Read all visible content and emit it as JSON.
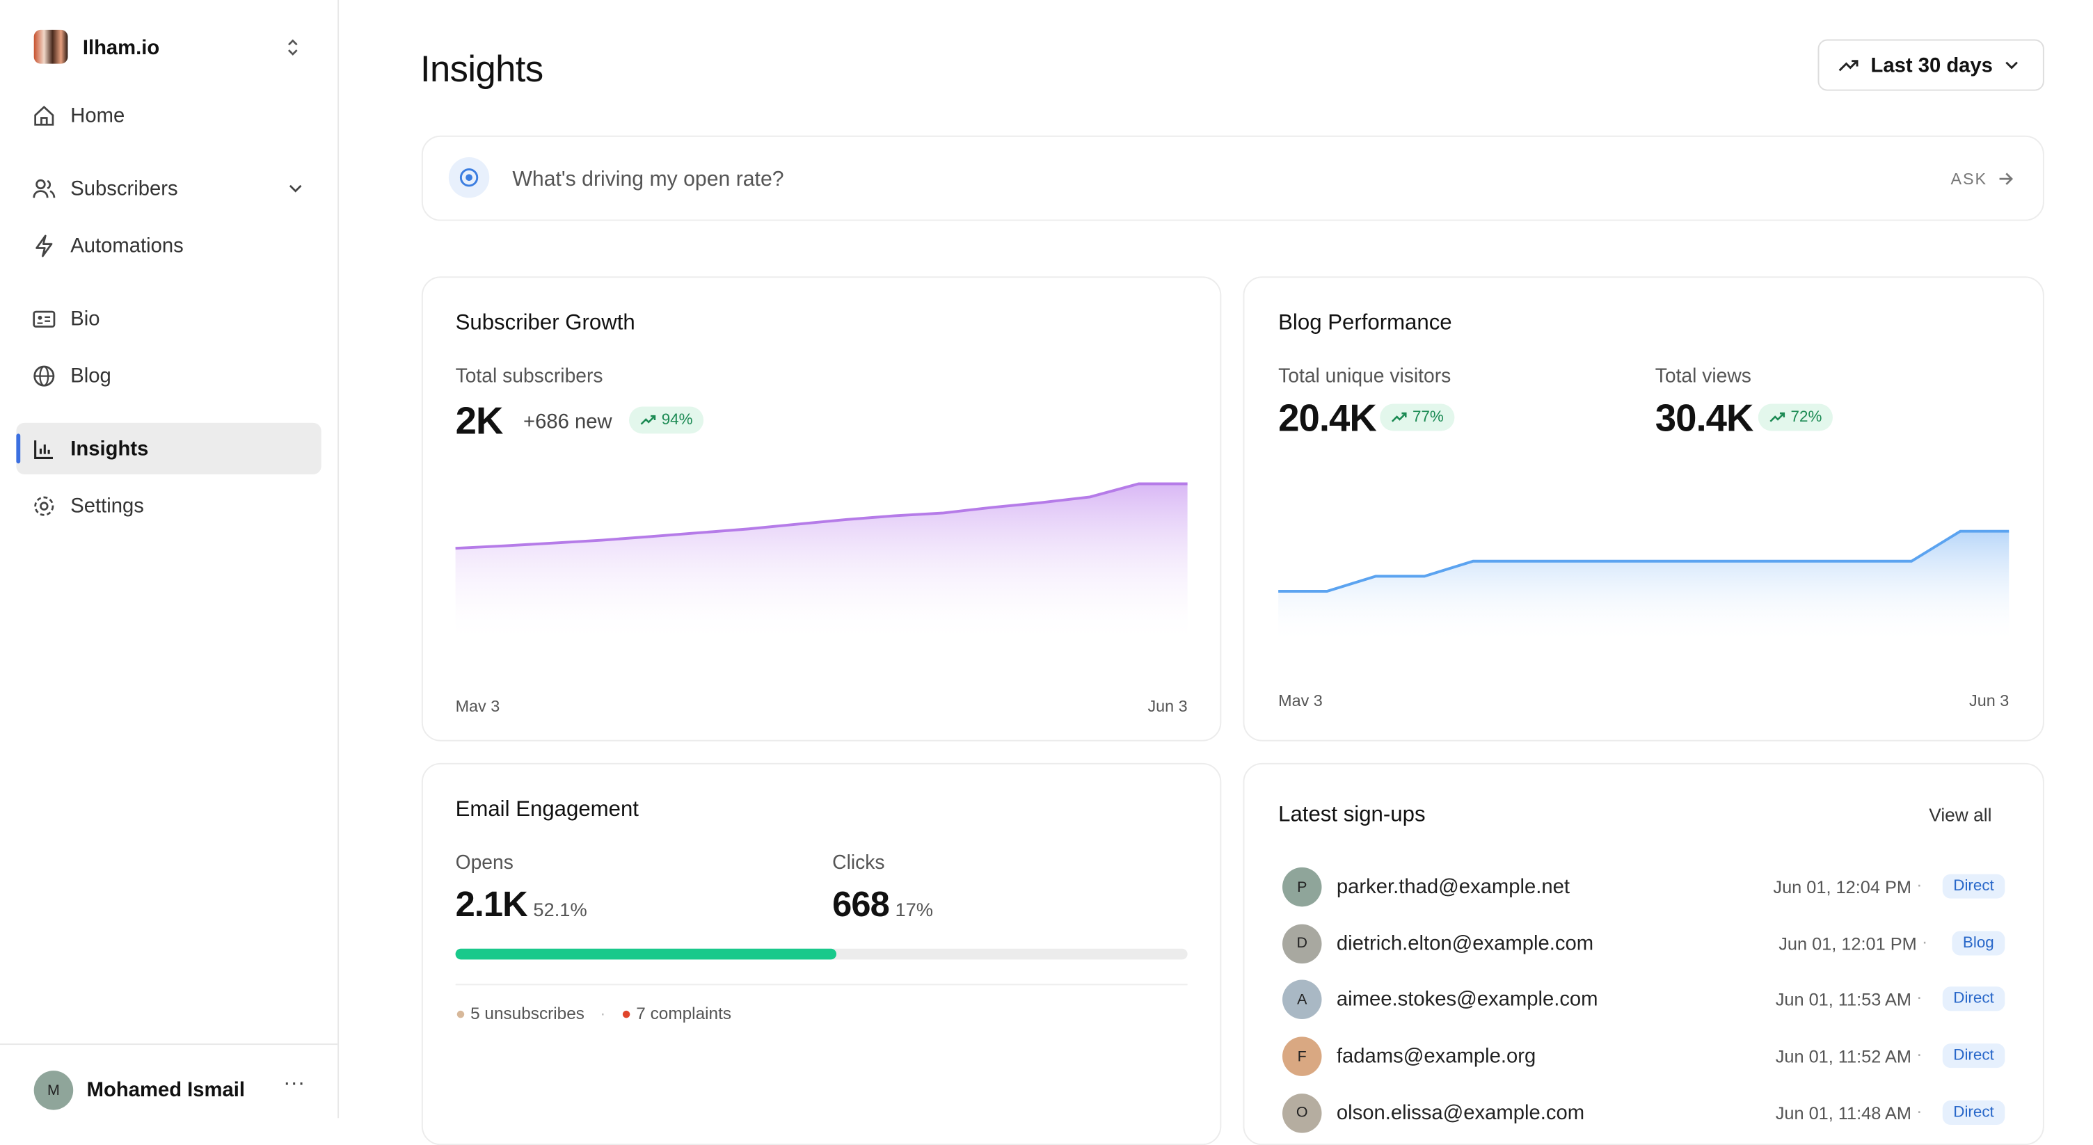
{
  "sidebar": {
    "workspace": "Ilham.io",
    "nav": [
      "Home",
      "Subscribers",
      "Automations",
      "Bio",
      "Blog",
      "Insights",
      "Settings"
    ],
    "user": {
      "initial": "M",
      "name": "Mohamed Ismail"
    }
  },
  "header": {
    "title": "Insights",
    "range": "Last 30 days"
  },
  "ask": {
    "placeholder": "What's driving my open rate?",
    "button": "ASK"
  },
  "subscriber_growth": {
    "title": "Subscriber Growth",
    "metric_label": "Total subscribers",
    "value": "2K",
    "new": "+686 new",
    "change": "94%"
  },
  "blog_performance": {
    "title": "Blog Performance",
    "metrics": [
      {
        "label": "Total unique visitors",
        "value": "20.4K",
        "change": "77%"
      },
      {
        "label": "Total views",
        "value": "30.4K",
        "change": "72%"
      }
    ]
  },
  "email_engagement": {
    "title": "Email Engagement",
    "opens": {
      "label": "Opens",
      "value": "2.1K",
      "rate": 52.1,
      "rate_label": "52.1%",
      "color": "#19c98b"
    },
    "clicks": {
      "label": "Clicks",
      "value": "668",
      "rate_label": "17%"
    },
    "footnotes": [
      "5 unsubscribes",
      "7 complaints"
    ]
  },
  "latest_signups": {
    "title": "Latest sign-ups",
    "link": "View all",
    "rows": [
      {
        "initial": "P",
        "email": "parker.thad@example.net",
        "date": "Jun 01, 12:04 PM",
        "source": "Direct"
      },
      {
        "initial": "D",
        "email": "dietrich.elton@example.com",
        "date": "Jun 01, 12:01 PM",
        "source": "Blog"
      },
      {
        "initial": "A",
        "email": "aimee.stokes@example.com",
        "date": "Jun 01, 11:53 AM",
        "source": "Direct"
      },
      {
        "initial": "F",
        "email": "fadams@example.org",
        "date": "Jun 01, 11:52 AM",
        "source": "Direct"
      },
      {
        "initial": "O",
        "email": "olson.elissa@example.com",
        "date": "Jun 01, 11:48 AM",
        "source": "Direct"
      }
    ]
  },
  "chart_data": [
    {
      "type": "area",
      "categories": [
        "Mav 3",
        null,
        null,
        null,
        null,
        null,
        null,
        null,
        null,
        null,
        null,
        null,
        null,
        null,
        null,
        "Jun 3"
      ],
      "series": [
        {
          "color": "#b57be8",
          "values": [
            1314,
            1340,
            1370,
            1400,
            1440,
            1480,
            1520,
            1570,
            1620,
            1660,
            1690,
            1750,
            1800,
            1860,
            2000,
            2000
          ]
        }
      ],
      "ylim": [
        300,
        2000
      ]
    },
    {
      "type": "area",
      "categories": [
        "Mav 3",
        null,
        null,
        null,
        null,
        null,
        null,
        null,
        null,
        null,
        null,
        null,
        null,
        null,
        null,
        "Jun 3"
      ],
      "series": [
        {
          "color": "#5ba3f0",
          "values": [
            12,
            12,
            14,
            14,
            16,
            16,
            16,
            16,
            16,
            16,
            16,
            16,
            16,
            16,
            20,
            20
          ]
        }
      ],
      "ylim": [
        5,
        20
      ]
    }
  ]
}
